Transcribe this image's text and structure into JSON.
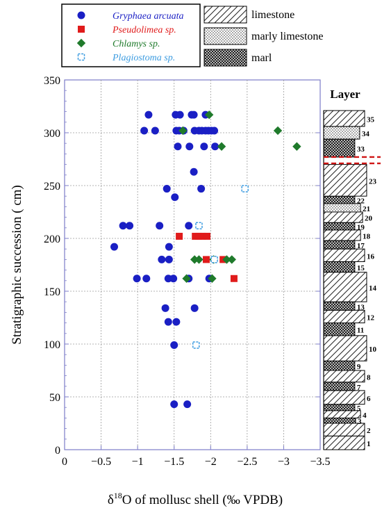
{
  "chart_data": {
    "type": "scatter",
    "xlabel_prefix": "δ",
    "xlabel_sup": "18",
    "xlabel_rest": "O of mollusc shell (‰ VPDB)",
    "ylabel": "Stratigraphic succession ( cm)",
    "xlim": [
      0,
      -3.5
    ],
    "ylim": [
      0,
      350
    ],
    "x_ticks": [
      {
        "v": 0,
        "label": "0"
      },
      {
        "v": -0.5,
        "label": "−0.5"
      },
      {
        "v": -1,
        "label": "−1"
      },
      {
        "v": -1.5,
        "label": "−1.5"
      },
      {
        "v": -2,
        "label": "−2"
      },
      {
        "v": -2.5,
        "label": "−2.5"
      },
      {
        "v": -3,
        "label": "−3"
      },
      {
        "v": -3.5,
        "label": "−3.5"
      }
    ],
    "y_ticks": [
      {
        "v": 0,
        "label": "0"
      },
      {
        "v": 50,
        "label": "50"
      },
      {
        "v": 100,
        "label": "100"
      },
      {
        "v": 150,
        "label": "150"
      },
      {
        "v": 200,
        "label": "200"
      },
      {
        "v": 250,
        "label": "250"
      },
      {
        "v": 300,
        "label": "300"
      },
      {
        "v": 350,
        "label": "350"
      }
    ],
    "grid": true,
    "legend_position": "top-left",
    "series": [
      {
        "name": "Gryphaea arcuata",
        "marker": "circle",
        "color": "#1a1fc4",
        "points": [
          [
            -1.15,
            317
          ],
          [
            -1.52,
            317
          ],
          [
            -1.58,
            317
          ],
          [
            -1.74,
            317
          ],
          [
            -1.77,
            317
          ],
          [
            -1.93,
            317
          ],
          [
            -1.09,
            302
          ],
          [
            -1.24,
            302
          ],
          [
            -1.53,
            302
          ],
          [
            -1.57,
            302
          ],
          [
            -1.63,
            302
          ],
          [
            -1.78,
            302
          ],
          [
            -1.84,
            302
          ],
          [
            -1.88,
            302
          ],
          [
            -1.93,
            302
          ],
          [
            -1.97,
            302
          ],
          [
            -2.01,
            302
          ],
          [
            -2.05,
            302
          ],
          [
            -1.55,
            287
          ],
          [
            -1.71,
            287
          ],
          [
            -1.91,
            287
          ],
          [
            -2.06,
            287
          ],
          [
            -1.77,
            263
          ],
          [
            -1.4,
            247
          ],
          [
            -1.87,
            247
          ],
          [
            -1.51,
            239
          ],
          [
            -0.8,
            212
          ],
          [
            -0.89,
            212
          ],
          [
            -1.3,
            212
          ],
          [
            -1.7,
            212
          ],
          [
            -0.68,
            192
          ],
          [
            -1.43,
            192
          ],
          [
            -1.33,
            180
          ],
          [
            -1.43,
            180
          ],
          [
            -0.99,
            162
          ],
          [
            -1.12,
            162
          ],
          [
            -1.42,
            162
          ],
          [
            -1.49,
            162
          ],
          [
            -1.7,
            162
          ],
          [
            -1.98,
            162
          ],
          [
            -1.38,
            134
          ],
          [
            -1.78,
            134
          ],
          [
            -1.42,
            121
          ],
          [
            -1.53,
            121
          ],
          [
            -1.5,
            99
          ],
          [
            -1.5,
            43
          ],
          [
            -1.68,
            43
          ]
        ]
      },
      {
        "name": "Pseudolimea sp.",
        "marker": "square",
        "color": "#e01b1b",
        "points": [
          [
            -1.57,
            202
          ],
          [
            -1.79,
            202
          ],
          [
            -1.84,
            202
          ],
          [
            -1.89,
            202
          ],
          [
            -1.95,
            202
          ],
          [
            -1.94,
            180
          ],
          [
            -2.17,
            180
          ],
          [
            -2.32,
            162
          ]
        ]
      },
      {
        "name": "Chlamys sp.",
        "marker": "diamond",
        "color": "#1f7a2b",
        "points": [
          [
            -1.98,
            317
          ],
          [
            -1.62,
            302
          ],
          [
            -2.92,
            302
          ],
          [
            -2.15,
            287
          ],
          [
            -3.18,
            287
          ],
          [
            -1.78,
            180
          ],
          [
            -1.84,
            180
          ],
          [
            -2.04,
            180
          ],
          [
            -2.22,
            180
          ],
          [
            -2.29,
            180
          ],
          [
            -1.67,
            162
          ],
          [
            -2.02,
            162
          ]
        ]
      },
      {
        "name": "Plagiostoma sp.",
        "marker": "open-square",
        "color": "#3d9ce0",
        "points": [
          [
            -2.47,
            247
          ],
          [
            -1.84,
            212
          ],
          [
            -2.05,
            180
          ],
          [
            -1.8,
            99
          ]
        ]
      }
    ],
    "lithology_legend": [
      {
        "label": "limestone",
        "pattern": "hatch"
      },
      {
        "label": "marly limestone",
        "pattern": "dots"
      },
      {
        "label": "marl",
        "pattern": "cross"
      }
    ],
    "column_title": "Layer",
    "layers": [
      {
        "n": "1",
        "from": 0,
        "to": 13,
        "litho": "limestone",
        "w": 1.0
      },
      {
        "n": "2",
        "from": 13,
        "to": 25,
        "litho": "limestone",
        "w": 1.0
      },
      {
        "n": "3",
        "from": 25,
        "to": 30,
        "litho": "marl",
        "w": 0.78
      },
      {
        "n": "4",
        "from": 30,
        "to": 37,
        "litho": "limestone",
        "w": 0.9
      },
      {
        "n": "5",
        "from": 37,
        "to": 43,
        "litho": "marl",
        "w": 0.76
      },
      {
        "n": "6",
        "from": 43,
        "to": 56,
        "litho": "limestone",
        "w": 1.0
      },
      {
        "n": "7",
        "from": 56,
        "to": 64,
        "litho": "marl",
        "w": 0.76
      },
      {
        "n": "8",
        "from": 64,
        "to": 75,
        "litho": "limestone",
        "w": 1.0
      },
      {
        "n": "9",
        "from": 75,
        "to": 84,
        "litho": "marl",
        "w": 0.76
      },
      {
        "n": "10",
        "from": 84,
        "to": 108,
        "litho": "limestone",
        "w": 1.05
      },
      {
        "n": "11",
        "from": 108,
        "to": 120,
        "litho": "marl",
        "w": 0.76
      },
      {
        "n": "12",
        "from": 120,
        "to": 132,
        "litho": "limestone",
        "w": 1.0
      },
      {
        "n": "13",
        "from": 132,
        "to": 140,
        "litho": "marl",
        "w": 0.76
      },
      {
        "n": "14",
        "from": 140,
        "to": 168,
        "litho": "limestone",
        "w": 1.05
      },
      {
        "n": "15",
        "from": 168,
        "to": 178,
        "litho": "marl",
        "w": 0.76
      },
      {
        "n": "16",
        "from": 178,
        "to": 190,
        "litho": "limestone",
        "w": 1.0
      },
      {
        "n": "17",
        "from": 190,
        "to": 198,
        "litho": "marl",
        "w": 0.76
      },
      {
        "n": "18",
        "from": 198,
        "to": 208,
        "litho": "limestone",
        "w": 0.9
      },
      {
        "n": "19",
        "from": 208,
        "to": 215,
        "litho": "marl",
        "w": 0.76
      },
      {
        "n": "20",
        "from": 215,
        "to": 225,
        "litho": "limestone",
        "w": 0.95
      },
      {
        "n": "21",
        "from": 225,
        "to": 233,
        "litho": "marly limestone",
        "w": 0.9
      },
      {
        "n": "22",
        "from": 233,
        "to": 240,
        "litho": "marl",
        "w": 0.76
      },
      {
        "n": "23",
        "from": 240,
        "to": 270,
        "litho": "limestone",
        "w": 1.05
      },
      {
        "n": "33",
        "from": 277,
        "to": 294,
        "litho": "marl",
        "w": 0.76
      },
      {
        "n": "34",
        "from": 294,
        "to": 306,
        "litho": "marly limestone",
        "w": 0.88
      },
      {
        "n": "35",
        "from": 306,
        "to": 321,
        "litho": "limestone",
        "w": 1.0
      }
    ],
    "gap_lines": [
      271,
      277
    ]
  }
}
